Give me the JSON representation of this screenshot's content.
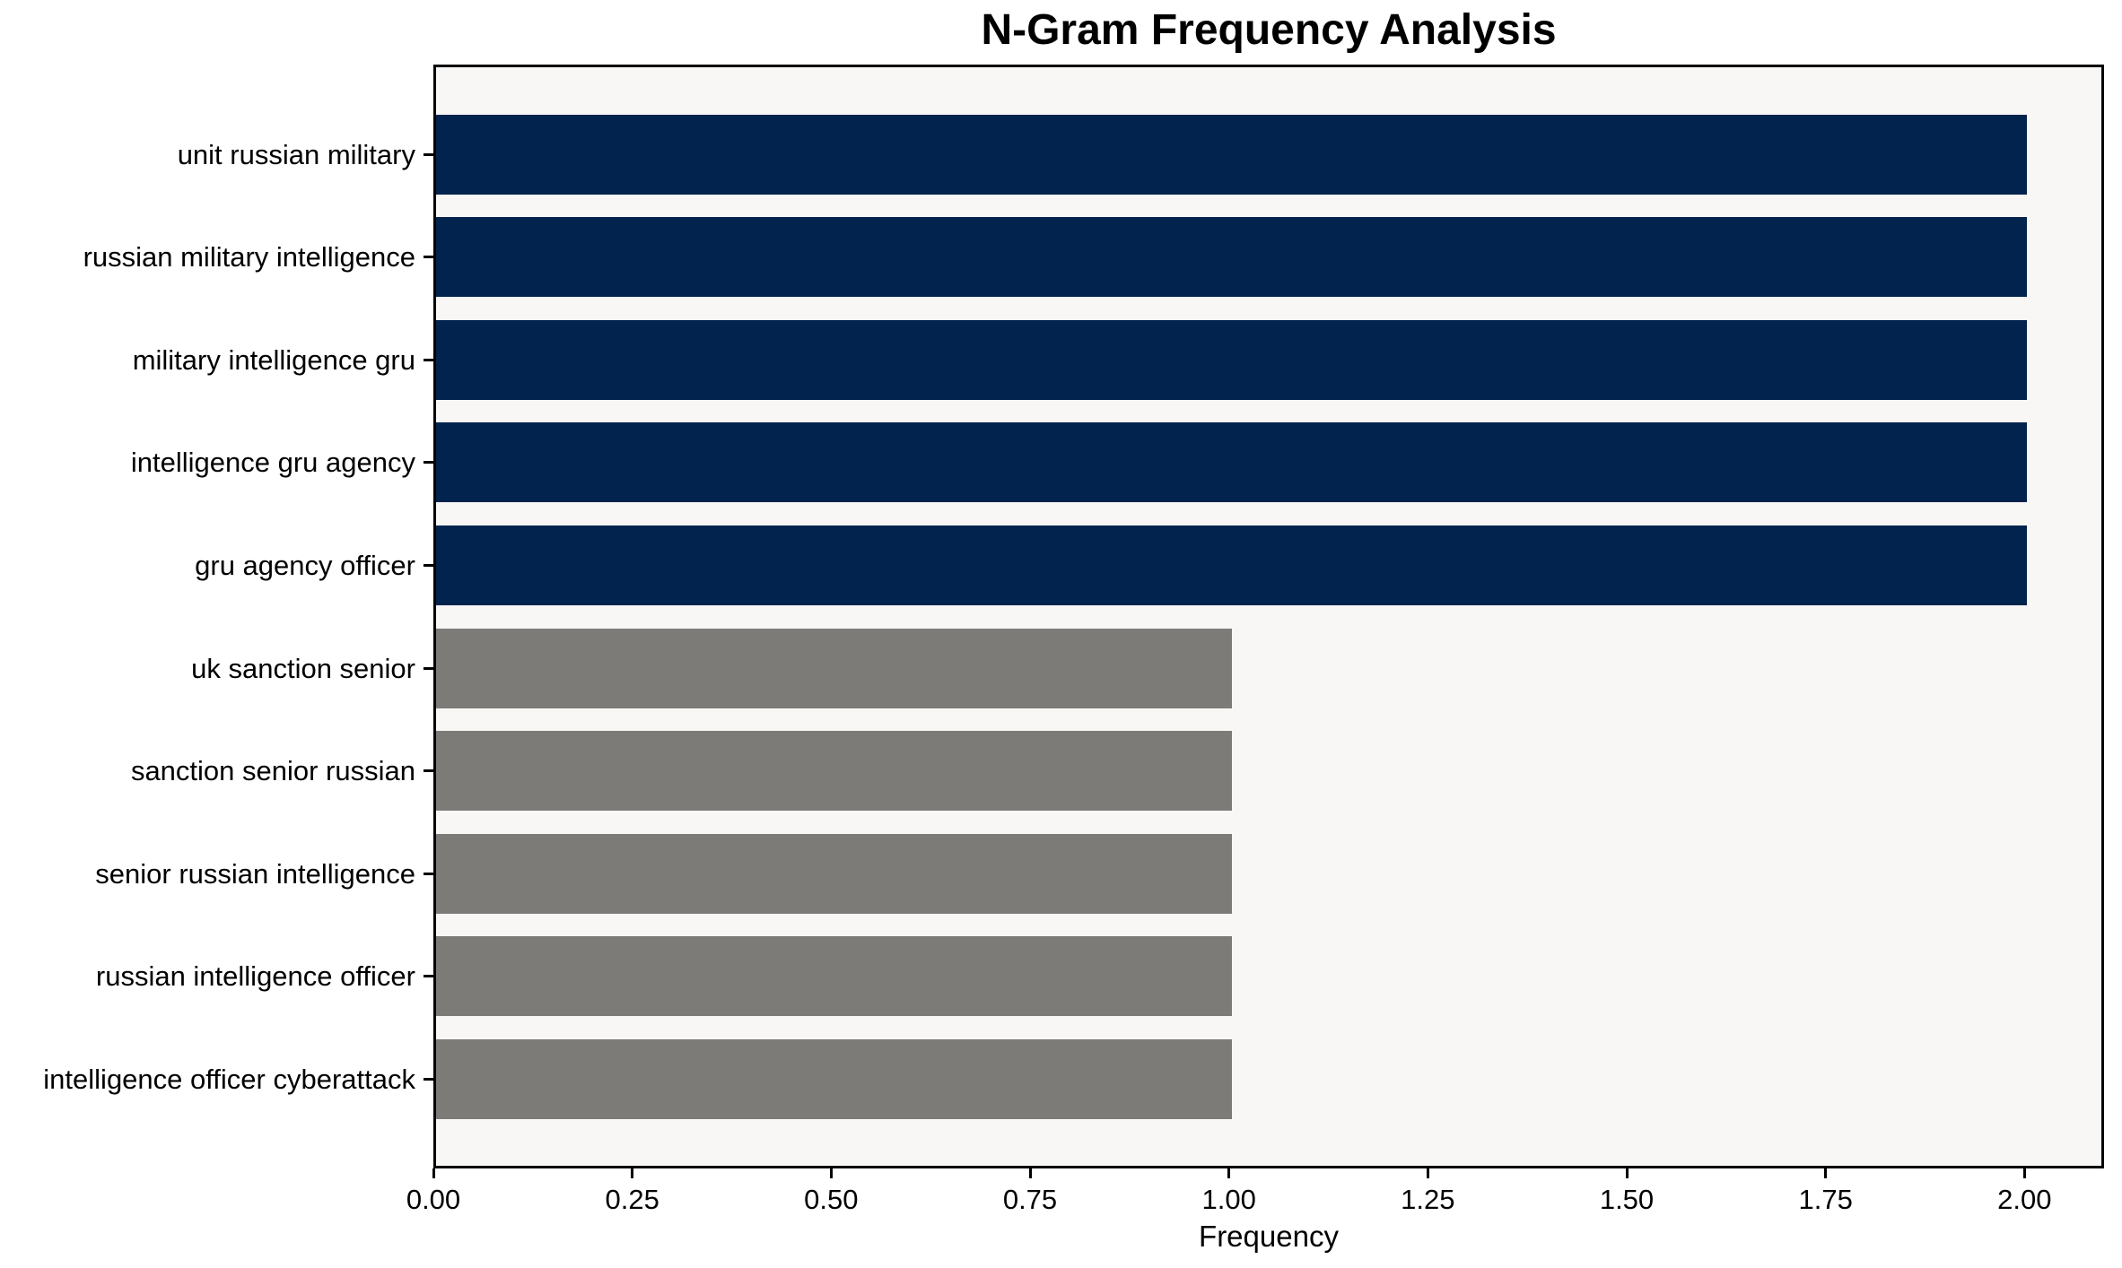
{
  "chart_data": {
    "type": "bar",
    "orientation": "horizontal",
    "title": "N-Gram Frequency Analysis",
    "xlabel": "Frequency",
    "ylabel": "",
    "categories": [
      "unit russian military",
      "russian military intelligence",
      "military intelligence gru",
      "intelligence gru agency",
      "gru agency officer",
      "uk sanction senior",
      "sanction senior russian",
      "senior russian intelligence",
      "russian intelligence officer",
      "intelligence officer cyberattack"
    ],
    "values": [
      2,
      2,
      2,
      2,
      2,
      1,
      1,
      1,
      1,
      1
    ],
    "bar_colors": [
      "#02234d",
      "#02234d",
      "#02234d",
      "#02234d",
      "#02234d",
      "#7c7b77",
      "#7c7b77",
      "#7c7b77",
      "#7c7b77",
      "#7c7b77"
    ],
    "xlim": [
      0,
      2.1
    ],
    "xticks": [
      0.0,
      0.25,
      0.5,
      0.75,
      1.0,
      1.25,
      1.5,
      1.75,
      2.0
    ],
    "xtick_labels": [
      "0.00",
      "0.25",
      "0.50",
      "0.75",
      "1.00",
      "1.25",
      "1.50",
      "1.75",
      "2.00"
    ],
    "grid": false,
    "legend": null,
    "colors": {
      "plot_background": "#f8f7f5",
      "figure_background": "#ffffff",
      "highlight_bar": "#02234d",
      "muted_bar": "#7c7b77",
      "axis": "#000000",
      "text": "#000000"
    }
  }
}
